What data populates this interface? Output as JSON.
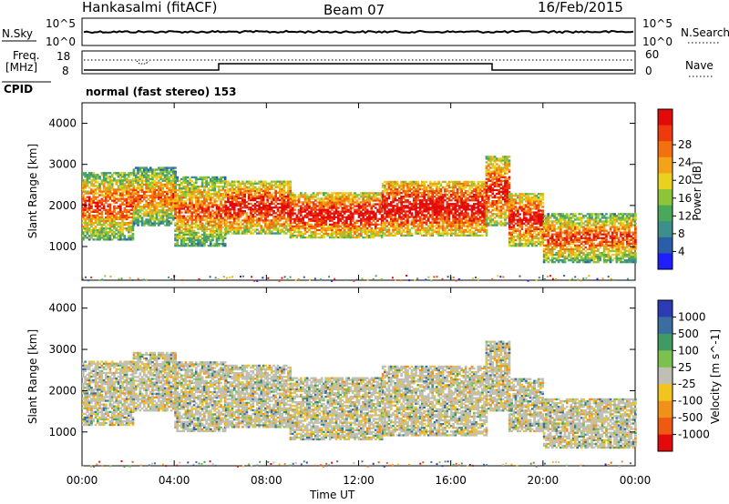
{
  "header": {
    "station": "Hankasalmi (fitACF)",
    "beam": "Beam 07",
    "date": "16/Feb/2015"
  },
  "noise_panel": {
    "left_label": "N.Sky",
    "right_label": "N.Search",
    "left_ticks": [
      "10^5",
      "10^0"
    ],
    "right_ticks": [
      "10^5",
      "10^0"
    ]
  },
  "freq_panel": {
    "left_label_line1": "Freq.",
    "left_label_line2": "[MHz]",
    "left_ticks": [
      "18",
      "8"
    ],
    "right_label": "Nave",
    "right_ticks": [
      "60",
      "0"
    ]
  },
  "cpid": {
    "label": "CPID",
    "text": "normal (fast stereo) 153"
  },
  "chart_data": [
    {
      "type": "heatmap",
      "name": "power",
      "xlabel": "Time UT",
      "ylabel": "Slant Range [km]",
      "xlim": [
        "00:00",
        "24:00"
      ],
      "ylim": [
        180,
        4500
      ],
      "x_ticks": [
        "00:00",
        "04:00",
        "08:00",
        "12:00",
        "16:00",
        "20:00",
        "00:00"
      ],
      "y_ticks": [
        1000,
        2000,
        3000,
        4000
      ],
      "colorbar": {
        "label": "Power [dB]",
        "ticks": [
          "4",
          "8",
          "12",
          "16",
          "20",
          "24",
          "28"
        ],
        "colors": [
          "#1e1eff",
          "#2a5fa8",
          "#3c8f8a",
          "#4aa85a",
          "#8cc53a",
          "#e9d21e",
          "#f4a218",
          "#f2700f",
          "#ee3a0c",
          "#e20a0a"
        ]
      },
      "bands": [
        {
          "t0": 0.0,
          "t1": 2.2,
          "r0": 1150,
          "r1": 2800,
          "level": 0.55
        },
        {
          "t0": 2.2,
          "t1": 4.0,
          "r0": 1500,
          "r1": 2900,
          "level": 0.45
        },
        {
          "t0": 4.0,
          "t1": 6.2,
          "r0": 1000,
          "r1": 2700,
          "level": 0.5
        },
        {
          "t0": 6.2,
          "t1": 9.0,
          "r0": 1300,
          "r1": 2600,
          "level": 0.75
        },
        {
          "t0": 9.0,
          "t1": 13.0,
          "r0": 1200,
          "r1": 2300,
          "level": 0.8
        },
        {
          "t0": 13.0,
          "t1": 17.5,
          "r0": 1250,
          "r1": 2600,
          "level": 0.85
        },
        {
          "t0": 17.5,
          "t1": 18.5,
          "r0": 1500,
          "r1": 3200,
          "level": 0.7
        },
        {
          "t0": 18.5,
          "t1": 20.0,
          "r0": 1000,
          "r1": 2300,
          "level": 0.75
        },
        {
          "t0": 20.0,
          "t1": 24.0,
          "r0": 600,
          "r1": 1800,
          "level": 0.55
        }
      ]
    },
    {
      "type": "heatmap",
      "name": "velocity",
      "xlabel": "Time UT",
      "ylabel": "Slant Range [km]",
      "xlim": [
        "00:00",
        "24:00"
      ],
      "ylim": [
        180,
        4500
      ],
      "x_ticks": [
        "00:00",
        "04:00",
        "08:00",
        "12:00",
        "16:00",
        "20:00",
        "00:00"
      ],
      "y_ticks": [
        1000,
        2000,
        3000,
        4000
      ],
      "colorbar": {
        "label": "Velocity [m s^-1]",
        "ticks": [
          "1000",
          "500",
          "100",
          "25",
          "-25",
          "-100",
          "-500",
          "-1000"
        ],
        "colors": [
          "#2d3cb4",
          "#3a6ea0",
          "#3f9a64",
          "#7cc050",
          "#bfbfb4",
          "#f2c41e",
          "#f0921a",
          "#ee5a12",
          "#e20a0a"
        ]
      },
      "bands": [
        {
          "t0": 0.0,
          "t1": 2.2,
          "r0": 1150,
          "r1": 2700,
          "level": 0.5
        },
        {
          "t0": 2.2,
          "t1": 4.0,
          "r0": 1500,
          "r1": 2900,
          "level": 0.5
        },
        {
          "t0": 4.0,
          "t1": 6.2,
          "r0": 1000,
          "r1": 2700,
          "level": 0.5
        },
        {
          "t0": 6.2,
          "t1": 9.0,
          "r0": 1100,
          "r1": 2600,
          "level": 0.5
        },
        {
          "t0": 9.0,
          "t1": 13.0,
          "r0": 800,
          "r1": 2300,
          "level": 0.5
        },
        {
          "t0": 13.0,
          "t1": 17.5,
          "r0": 900,
          "r1": 2600,
          "level": 0.5
        },
        {
          "t0": 17.5,
          "t1": 18.5,
          "r0": 1500,
          "r1": 3200,
          "level": 0.5
        },
        {
          "t0": 18.5,
          "t1": 20.0,
          "r0": 1000,
          "r1": 2300,
          "level": 0.5
        },
        {
          "t0": 20.0,
          "t1": 24.0,
          "r0": 600,
          "r1": 1800,
          "level": 0.5
        }
      ]
    }
  ]
}
